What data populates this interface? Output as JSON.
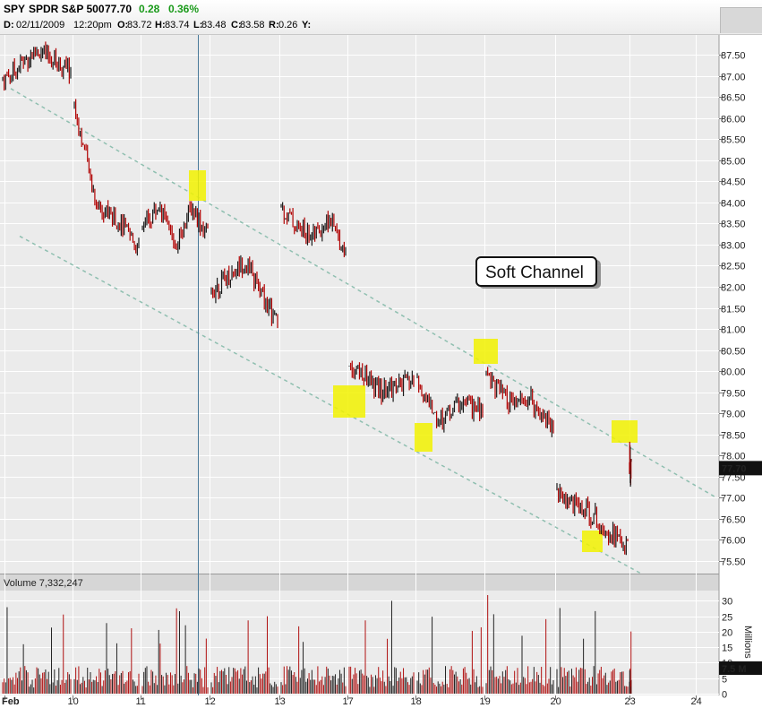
{
  "header": {
    "symbol": "SPY",
    "name": "SPDR S&P 500",
    "last": "77.70",
    "change": "0.28",
    "change_pct": "0.36%",
    "change_color": "#1a9a1a",
    "bar_info": {
      "d_label": "D:",
      "date": "02/11/2009",
      "time": "12:20pm",
      "o_label": "O:",
      "o": "83.72",
      "h_label": "H:",
      "h": "83.74",
      "l_label": "L:",
      "l": "83.48",
      "c_label": "C:",
      "c": "83.58",
      "r_label": "R:",
      "r": "0.26",
      "y_label": "Y:"
    }
  },
  "annotation": {
    "text": "Soft Channel"
  },
  "volume_panel": {
    "label": "Volume 7,332,247",
    "badge": "7.5 M",
    "unit": "Millions"
  },
  "price_badge": "77.70",
  "colors": {
    "up": "#1a1a1a",
    "down": "#b00000",
    "highlight": "#f2f200",
    "channel": "#8fbfb0",
    "volume_bar": "#b01010"
  },
  "chart_data": {
    "type": "line",
    "title": "",
    "x_ticks": [
      "Feb",
      "10",
      "11",
      "12",
      "13",
      "17",
      "18",
      "19",
      "20",
      "23",
      "24"
    ],
    "price_axis": {
      "ticks": [
        "75.50",
        "76.00",
        "76.50",
        "77.00",
        "77.50",
        "78.00",
        "78.50",
        "79.00",
        "79.50",
        "80.00",
        "80.50",
        "81.00",
        "81.50",
        "82.00",
        "82.50",
        "83.00",
        "83.50",
        "84.00",
        "84.50",
        "85.00",
        "85.50",
        "86.00",
        "86.50",
        "87.00",
        "87.50"
      ],
      "ylim": [
        75.2,
        87.95
      ]
    },
    "volume_axis": {
      "ticks": [
        "0",
        "5",
        "10",
        "15",
        "20",
        "25",
        "30"
      ],
      "ylim": [
        0,
        33
      ],
      "label": "Millions"
    },
    "series": [
      {
        "name": "SPY",
        "points": [
          {
            "x": "Feb 9",
            "y": 86.9
          },
          {
            "x": "Feb 9",
            "y": 87.6
          },
          {
            "x": "Feb 9",
            "y": 87.1
          },
          {
            "x": "Feb 10",
            "y": 86.3
          },
          {
            "x": "Feb 10",
            "y": 84.0
          },
          {
            "x": "Feb 10",
            "y": 83.6
          },
          {
            "x": "Feb 10",
            "y": 82.9
          },
          {
            "x": "Feb 11",
            "y": 83.4
          },
          {
            "x": "Feb 11",
            "y": 83.9
          },
          {
            "x": "Feb 11",
            "y": 83.0
          },
          {
            "x": "Feb 11",
            "y": 83.9
          },
          {
            "x": "Feb 11",
            "y": 83.2
          },
          {
            "x": "Feb 12",
            "y": 81.9
          },
          {
            "x": "Feb 12",
            "y": 82.6
          },
          {
            "x": "Feb 12",
            "y": 81.1
          },
          {
            "x": "Feb 13",
            "y": 83.9
          },
          {
            "x": "Feb 13",
            "y": 83.4
          },
          {
            "x": "Feb 13",
            "y": 83.2
          },
          {
            "x": "Feb 13",
            "y": 83.6
          },
          {
            "x": "Feb 13",
            "y": 82.8
          },
          {
            "x": "Feb 17",
            "y": 80.2
          },
          {
            "x": "Feb 17",
            "y": 79.5
          },
          {
            "x": "Feb 17",
            "y": 79.8
          },
          {
            "x": "Feb 18",
            "y": 79.7
          },
          {
            "x": "Feb 18",
            "y": 78.8
          },
          {
            "x": "Feb 18",
            "y": 79.3
          },
          {
            "x": "Feb 18",
            "y": 79.0
          },
          {
            "x": "Feb 19",
            "y": 80.0
          },
          {
            "x": "Feb 19",
            "y": 79.2
          },
          {
            "x": "Feb 19",
            "y": 79.3
          },
          {
            "x": "Feb 19",
            "y": 78.7
          },
          {
            "x": "Feb 20",
            "y": 77.1
          },
          {
            "x": "Feb 20",
            "y": 76.6
          },
          {
            "x": "Feb 20",
            "y": 75.8
          },
          {
            "x": "Feb 23",
            "y": 77.8
          },
          {
            "x": "Feb 23",
            "y": 77.3
          },
          {
            "x": "Feb 23",
            "y": 78.2
          },
          {
            "x": "Feb 23",
            "y": 77.7
          }
        ]
      }
    ],
    "channel_lines": [
      {
        "name": "",
        "from": {
          "x": "Feb 9",
          "y": 86.7
        },
        "to": {
          "x": "Feb 24",
          "y": 77.0
        }
      },
      {
        "name": "",
        "from": {
          "x": "Feb 9",
          "y": 83.2
        },
        "to": {
          "x": "Feb 23",
          "y": 75.2
        }
      }
    ],
    "highlights": [
      {
        "x": "Feb 11",
        "y": 84.2
      },
      {
        "x": "Feb 17",
        "y": 78.9
      },
      {
        "x": "Feb 18",
        "y": 78.2
      },
      {
        "x": "Feb 19",
        "y": 80.2
      },
      {
        "x": "Feb 20",
        "y": 75.9
      },
      {
        "x": "Feb 23",
        "y": 78.4
      }
    ],
    "crosshair": {
      "x": "Feb 11"
    },
    "grid": true
  }
}
